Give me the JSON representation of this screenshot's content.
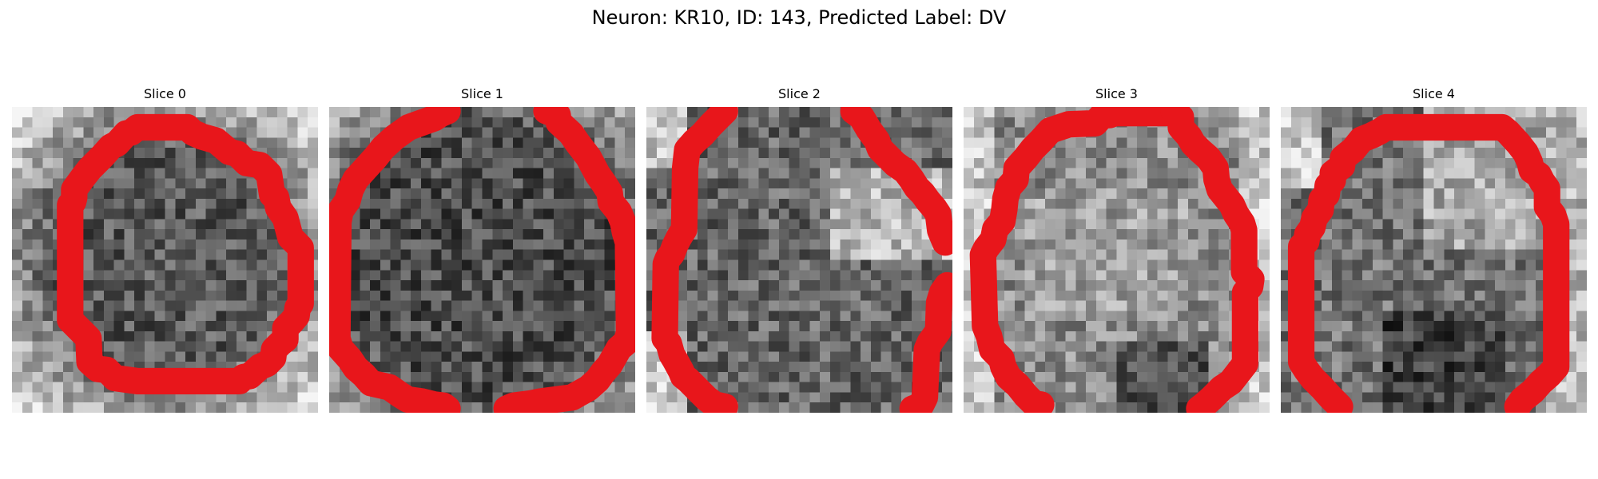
{
  "figure": {
    "title": "Neuron: KR10, ID: 143, Predicted Label: DV"
  },
  "panels": [
    {
      "title": "Slice 0",
      "contour": "closed"
    },
    {
      "title": "Slice 1",
      "contour": "open"
    },
    {
      "title": "Slice 2",
      "contour": "open"
    },
    {
      "title": "Slice 3",
      "contour": "open"
    },
    {
      "title": "Slice 4",
      "contour": "open"
    }
  ],
  "style": {
    "contour_color": "#e8161b",
    "colormap": "grayscale"
  }
}
